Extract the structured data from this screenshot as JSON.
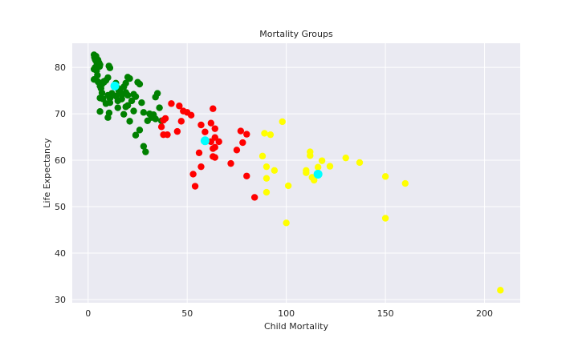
{
  "chart_data": {
    "type": "scatter",
    "title": "Mortality Groups",
    "xlabel": "Child Mortality",
    "ylabel": "Life Expectancy",
    "xlim": [
      -8,
      218
    ],
    "ylim": [
      29.3,
      85.2
    ],
    "xticks": [
      0,
      50,
      100,
      150,
      200
    ],
    "yticks": [
      30,
      40,
      50,
      60,
      70,
      80
    ],
    "grid": true,
    "colors": {
      "background": "#eaeaf2",
      "grid": "#ffffff",
      "group_low": "#008000",
      "group_mid": "#ff0000",
      "group_high": "#ffff00",
      "centroid": "#00ffff"
    },
    "series": [
      {
        "color": "#008000",
        "points": [
          [
            3,
            82.7
          ],
          [
            3.2,
            82.2
          ],
          [
            3.5,
            81.8
          ],
          [
            3.8,
            81.5
          ],
          [
            4,
            82.4
          ],
          [
            4.2,
            81.9
          ],
          [
            4.5,
            80.8
          ],
          [
            4.8,
            81.2
          ],
          [
            5,
            81.6
          ],
          [
            5.2,
            80.5
          ],
          [
            5.5,
            81
          ],
          [
            5.8,
            80.2
          ],
          [
            6,
            80.6
          ],
          [
            3,
            79.6
          ],
          [
            3.6,
            80
          ],
          [
            4.3,
            79.3
          ],
          [
            4.7,
            78.3
          ],
          [
            3,
            77.4
          ],
          [
            5,
            76.9
          ],
          [
            6,
            76
          ],
          [
            7,
            76.4
          ],
          [
            8,
            76.8
          ],
          [
            9,
            77.2
          ],
          [
            10,
            77.8
          ],
          [
            11,
            79.9
          ],
          [
            10.5,
            80.3
          ],
          [
            8,
            77
          ],
          [
            6.5,
            75.5
          ],
          [
            7,
            74.5
          ],
          [
            6,
            73.4
          ],
          [
            7.5,
            73.2
          ],
          [
            10,
            74
          ],
          [
            11,
            73.3
          ],
          [
            12,
            74.4
          ],
          [
            9,
            72.2
          ],
          [
            11,
            72.4
          ],
          [
            10.6,
            70.2
          ],
          [
            10,
            69.2
          ],
          [
            6,
            70.5
          ],
          [
            14,
            76.6
          ],
          [
            15,
            75.5
          ],
          [
            16,
            74.8
          ],
          [
            17,
            74.1
          ],
          [
            18,
            75.8
          ],
          [
            19,
            76.6
          ],
          [
            20,
            77.9
          ],
          [
            21,
            77.6
          ],
          [
            19,
            74.6
          ],
          [
            20,
            74
          ],
          [
            17,
            73.2
          ],
          [
            15,
            72.8
          ],
          [
            14,
            73.8
          ],
          [
            15,
            71.3
          ],
          [
            19,
            71.5
          ],
          [
            20,
            71.8
          ],
          [
            18,
            69.9
          ],
          [
            21,
            68.4
          ],
          [
            22,
            72.8
          ],
          [
            23,
            74.2
          ],
          [
            24,
            73.7
          ],
          [
            25,
            76.8
          ],
          [
            26,
            76.4
          ],
          [
            27,
            72.4
          ],
          [
            28,
            70.3
          ],
          [
            23,
            70.6
          ],
          [
            26,
            66.5
          ],
          [
            24,
            65.4
          ],
          [
            28,
            63
          ],
          [
            29,
            61.8
          ],
          [
            30,
            68.5
          ],
          [
            31,
            70
          ],
          [
            32,
            69.2
          ],
          [
            33,
            69.8
          ],
          [
            34,
            68.9
          ],
          [
            35,
            74.4
          ],
          [
            34,
            73.6
          ],
          [
            37,
            68.5
          ],
          [
            36,
            71.3
          ],
          [
            15.5,
            74.9
          ]
        ]
      },
      {
        "color": "#ff0000",
        "points": [
          [
            42,
            72.2
          ],
          [
            46,
            71.7
          ],
          [
            48,
            70.6
          ],
          [
            50,
            70.3
          ],
          [
            52,
            69.7
          ],
          [
            39,
            69
          ],
          [
            38,
            68.6
          ],
          [
            37,
            67.2
          ],
          [
            38,
            65.5
          ],
          [
            40,
            65.5
          ],
          [
            45,
            66.2
          ],
          [
            47,
            68.4
          ],
          [
            57,
            67.6
          ],
          [
            59,
            66.1
          ],
          [
            62,
            68
          ],
          [
            64,
            66.8
          ],
          [
            63,
            71.1
          ],
          [
            66,
            64
          ],
          [
            62,
            64
          ],
          [
            64,
            64.9
          ],
          [
            63,
            62.5
          ],
          [
            64,
            62.8
          ],
          [
            56,
            61.6
          ],
          [
            63,
            60.8
          ],
          [
            64,
            60.6
          ],
          [
            72,
            59.3
          ],
          [
            57,
            58.6
          ],
          [
            53,
            57
          ],
          [
            54,
            54.4
          ],
          [
            75,
            62.2
          ],
          [
            78,
            63.8
          ],
          [
            77,
            66.3
          ],
          [
            80,
            65.6
          ],
          [
            80,
            56.6
          ],
          [
            84,
            52
          ]
        ]
      },
      {
        "color": "#ffff00",
        "points": [
          [
            89,
            65.8
          ],
          [
            92,
            65.5
          ],
          [
            98,
            68.3
          ],
          [
            88,
            60.9
          ],
          [
            90,
            58.6
          ],
          [
            94,
            57.8
          ],
          [
            90,
            56.1
          ],
          [
            101,
            54.5
          ],
          [
            90,
            53.1
          ],
          [
            100,
            46.5
          ],
          [
            110,
            57.3
          ],
          [
            112,
            61.8
          ],
          [
            112,
            61
          ],
          [
            113,
            56.3
          ],
          [
            114,
            55.7
          ],
          [
            116,
            58.5
          ],
          [
            118,
            59.9
          ],
          [
            122,
            58.7
          ],
          [
            110,
            57.8
          ],
          [
            130,
            60.5
          ],
          [
            137,
            59.5
          ],
          [
            150,
            56.5
          ],
          [
            150,
            47.5
          ],
          [
            160,
            55
          ],
          [
            208,
            32
          ]
        ]
      }
    ],
    "centroids": [
      [
        13.5,
        76
      ],
      [
        59,
        64.2
      ],
      [
        116,
        57
      ]
    ]
  }
}
